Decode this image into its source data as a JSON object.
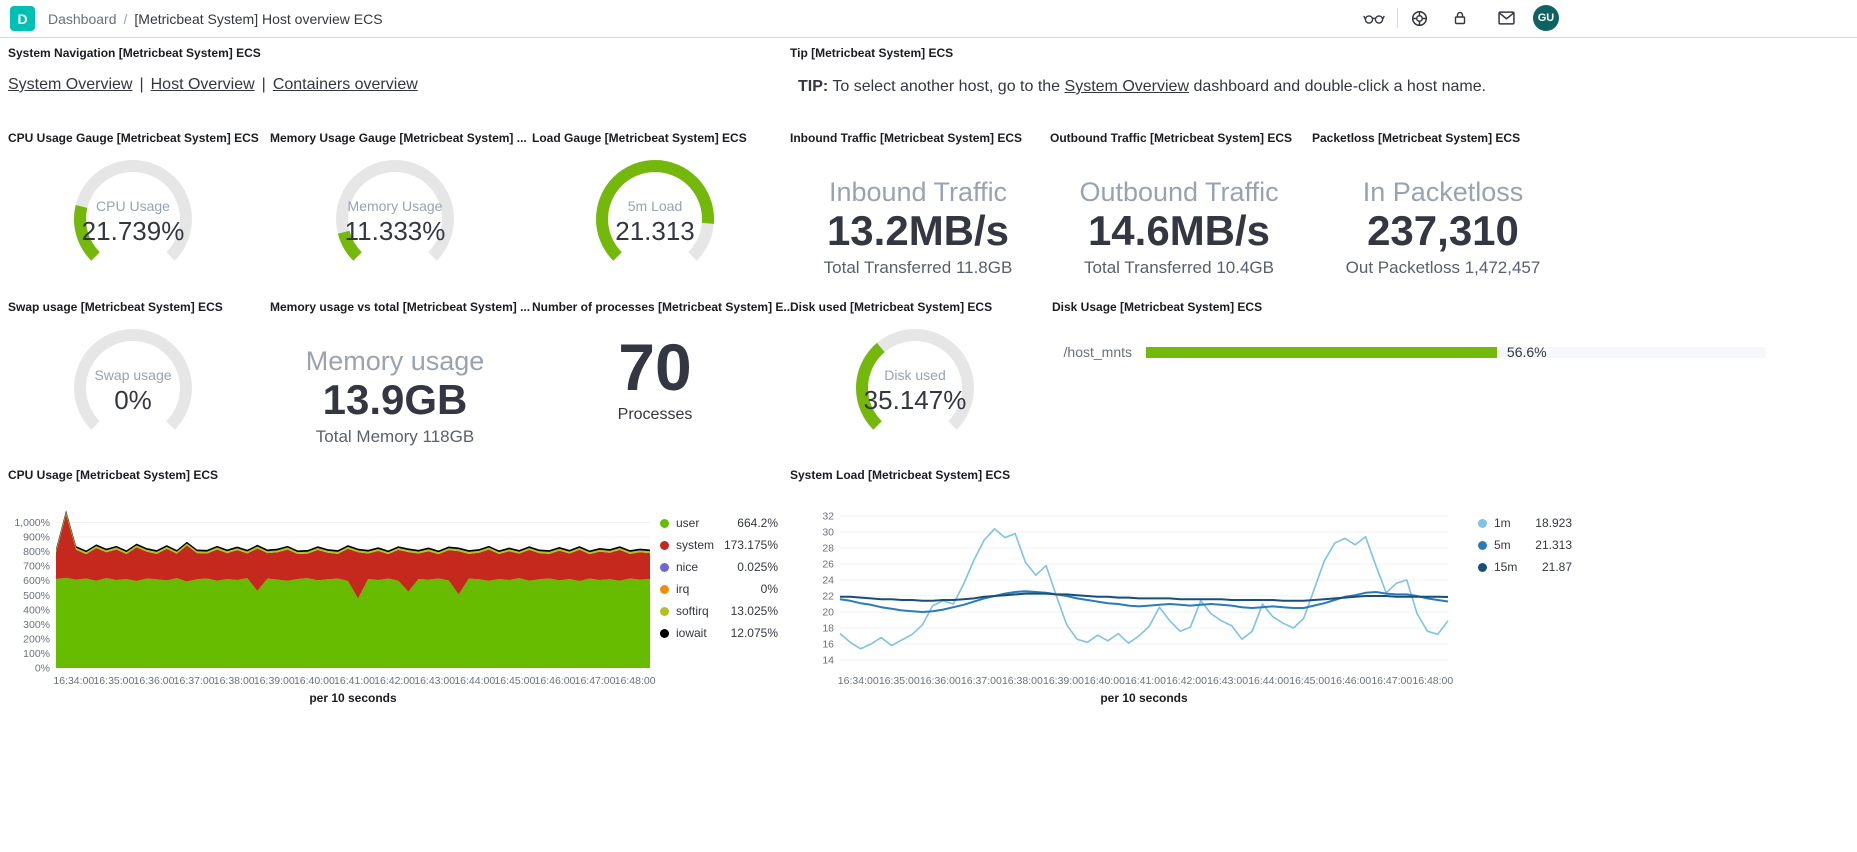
{
  "header": {
    "logo_letter": "D",
    "breadcrumb": {
      "section": "Dashboard",
      "separator": "/",
      "page": "[Metricbeat System] Host overview ECS"
    },
    "icons": [
      "glasses-view-only-icon",
      "help-ring-icon",
      "lock-icon",
      "mail-icon"
    ],
    "avatar_initials": "GU"
  },
  "colors": {
    "accent_teal": "#00bfb3",
    "avatar_bg": "#0e6362",
    "gauge_track": "#e6e6e6",
    "gauge_fill": "#74b80b",
    "disk_bar": "#74b80b"
  },
  "panels": {
    "system_navigation": {
      "title": "System Navigation [Metricbeat System] ECS",
      "links": [
        "System Overview",
        "Host Overview",
        "Containers overview"
      ],
      "separator": "|"
    },
    "tip": {
      "title": "Tip [Metricbeat System] ECS",
      "tip_label": "TIP:",
      "text_before": " To select another host, go to the ",
      "link": "System Overview",
      "text_after": " dashboard and double-click a host name."
    },
    "cpu_gauge": {
      "title": "CPU Usage Gauge [Metricbeat System] ECS",
      "label": "CPU Usage",
      "value": "21.739%",
      "fraction": 0.217
    },
    "memory_gauge": {
      "title": "Memory Usage Gauge [Metricbeat System] ...",
      "label": "Memory Usage",
      "value": "11.333%",
      "fraction": 0.113
    },
    "load_gauge": {
      "title": "Load Gauge [Metricbeat System] ECS",
      "label": "5m Load",
      "value": "21.313",
      "fraction": 0.85
    },
    "inbound": {
      "title": "Inbound Traffic [Metricbeat System] ECS",
      "label": "Inbound Traffic",
      "value": "13.2MB/s",
      "sub": "Total Transferred 11.8GB"
    },
    "outbound": {
      "title": "Outbound Traffic [Metricbeat System] ECS",
      "label": "Outbound Traffic",
      "value": "14.6MB/s",
      "sub": "Total Transferred 10.4GB"
    },
    "packetloss": {
      "title": "Packetloss [Metricbeat System] ECS",
      "label": "In Packetloss",
      "value": "237,310",
      "sub": "Out Packetloss 1,472,457"
    },
    "swap_gauge": {
      "title": "Swap usage [Metricbeat System] ECS",
      "label": "Swap usage",
      "value": "0%",
      "fraction": 0
    },
    "memory_vs_total": {
      "title": "Memory usage vs total [Metricbeat System] ...",
      "label": "Memory usage",
      "value": "13.9GB",
      "sub": "Total Memory 118GB"
    },
    "processes": {
      "title": "Number of processes [Metricbeat System] E...",
      "value": "70",
      "label": "Processes"
    },
    "disk_used_gauge": {
      "title": "Disk used [Metricbeat System] ECS",
      "label": "Disk used",
      "value": "35.147%",
      "fraction": 0.351
    },
    "disk_usage": {
      "title": "Disk Usage [Metricbeat System] ECS",
      "row_label": "/host_mnts",
      "percent": "56.6%",
      "fraction": 0.566
    },
    "cpu_chart": {
      "title": "CPU Usage [Metricbeat System] ECS"
    },
    "load_chart": {
      "title": "System Load [Metricbeat System] ECS"
    }
  },
  "chart_data": [
    {
      "type": "area",
      "stacked": true,
      "title": "CPU Usage [Metricbeat System] ECS",
      "xlabel": "per 10 seconds",
      "legend_position": "right",
      "grid": true,
      "ylim": [
        0,
        1100
      ],
      "yticks": [
        "0%",
        "100%",
        "200%",
        "300%",
        "400%",
        "500%",
        "600%",
        "700%",
        "800%",
        "900%",
        "1,000%"
      ],
      "xticks": [
        "16:34:00",
        "16:35:00",
        "16:36:00",
        "16:37:00",
        "16:38:00",
        "16:39:00",
        "16:40:00",
        "16:41:00",
        "16:42:00",
        "16:43:00",
        "16:44:00",
        "16:45:00",
        "16:46:00",
        "16:47:00",
        "16:48:00"
      ],
      "series": [
        {
          "name": "user",
          "color": "#68bc00",
          "legend_value": "664.2%",
          "values": [
            612,
            620,
            608,
            615,
            600,
            618,
            605,
            612,
            598,
            615,
            610,
            602,
            618,
            595,
            610,
            615,
            600,
            612,
            605,
            618,
            530,
            615,
            608,
            600,
            612,
            618,
            602,
            610,
            615,
            598,
            478,
            612,
            605,
            615,
            600,
            525,
            612,
            608,
            615,
            602,
            505,
            615,
            610,
            600,
            612,
            605,
            618,
            600,
            610,
            615,
            602,
            612,
            598,
            615,
            605,
            610,
            600,
            615,
            608,
            612
          ]
        },
        {
          "name": "system",
          "color": "#c5281c",
          "legend_value": "173.175%",
          "values": [
            182,
            438,
            205,
            168,
            225,
            178,
            210,
            172,
            232,
            185,
            175,
            218,
            168,
            248,
            180,
            172,
            215,
            178,
            205,
            170,
            292,
            175,
            188,
            215,
            172,
            168,
            210,
            182,
            170,
            222,
            318,
            175,
            200,
            168,
            212,
            272,
            175,
            195,
            168,
            208,
            298,
            170,
            182,
            215,
            172,
            198,
            168,
            212,
            180,
            170,
            205,
            175,
            215,
            168,
            195,
            182,
            212,
            170,
            188,
            178
          ]
        },
        {
          "name": "nice",
          "color": "#6e69d0",
          "legend_value": "0.025%",
          "values": 0.025
        },
        {
          "name": "irq",
          "color": "#ef8d0a",
          "legend_value": "0%",
          "values": 0
        },
        {
          "name": "softirq",
          "color": "#b1c321",
          "legend_value": "13.025%",
          "values": 13
        },
        {
          "name": "iowait",
          "color": "#000000",
          "legend_value": "12.075%",
          "values": 12
        }
      ]
    },
    {
      "type": "line",
      "title": "System Load [Metricbeat System] ECS",
      "xlabel": "per 10 seconds",
      "legend_position": "right",
      "grid": true,
      "ylim": [
        13,
        33
      ],
      "yticks": [
        "14",
        "16",
        "18",
        "20",
        "22",
        "24",
        "26",
        "28",
        "30",
        "32"
      ],
      "xticks": [
        "16:34:00",
        "16:35:00",
        "16:36:00",
        "16:37:00",
        "16:38:00",
        "16:39:00",
        "16:40:00",
        "16:41:00",
        "16:42:00",
        "16:43:00",
        "16:44:00",
        "16:45:00",
        "16:46:00",
        "16:47:00",
        "16:48:00"
      ],
      "series": [
        {
          "name": "1m",
          "color": "#7dc2e8",
          "legend_value": "18.923",
          "width": 1.6,
          "values": [
            17.3,
            16.2,
            15.4,
            16.0,
            16.8,
            15.8,
            16.5,
            17.2,
            18.4,
            20.8,
            21.4,
            21.0,
            23.5,
            26.5,
            29.0,
            30.4,
            29.3,
            29.8,
            26.2,
            24.6,
            25.8,
            22.0,
            18.4,
            16.6,
            16.2,
            17.1,
            16.4,
            17.3,
            16.1,
            17.0,
            18.2,
            20.6,
            18.9,
            17.6,
            18.1,
            21.4,
            19.8,
            18.9,
            18.3,
            16.6,
            17.6,
            21.0,
            19.4,
            18.6,
            18.0,
            19.2,
            22.8,
            26.4,
            28.6,
            29.2,
            28.4,
            29.4,
            25.8,
            22.4,
            23.6,
            24.0,
            19.8,
            17.6,
            17.2,
            18.9
          ]
        },
        {
          "name": "5m",
          "color": "#2b7bba",
          "legend_value": "21.313",
          "width": 2,
          "values": [
            21.6,
            21.4,
            21.1,
            20.9,
            20.6,
            20.4,
            20.2,
            20.1,
            20.0,
            20.1,
            20.3,
            20.6,
            20.9,
            21.3,
            21.7,
            22.0,
            22.3,
            22.5,
            22.6,
            22.5,
            22.4,
            22.2,
            22.0,
            21.7,
            21.5,
            21.3,
            21.1,
            21.0,
            20.8,
            20.7,
            20.8,
            20.9,
            21.0,
            20.9,
            20.8,
            20.9,
            21.0,
            20.9,
            20.8,
            20.6,
            20.5,
            20.6,
            20.7,
            20.6,
            20.5,
            20.5,
            20.8,
            21.1,
            21.5,
            21.9,
            22.1,
            22.4,
            22.5,
            22.3,
            22.2,
            22.2,
            22.0,
            21.7,
            21.5,
            21.31
          ]
        },
        {
          "name": "15m",
          "color": "#174f79",
          "legend_value": "21.87",
          "width": 2,
          "values": [
            21.9,
            21.9,
            21.8,
            21.7,
            21.6,
            21.6,
            21.5,
            21.5,
            21.4,
            21.4,
            21.5,
            21.5,
            21.6,
            21.7,
            21.9,
            22.0,
            22.1,
            22.2,
            22.3,
            22.3,
            22.3,
            22.2,
            22.2,
            22.1,
            22.0,
            21.9,
            21.9,
            21.8,
            21.8,
            21.7,
            21.7,
            21.7,
            21.7,
            21.6,
            21.6,
            21.6,
            21.6,
            21.6,
            21.5,
            21.5,
            21.5,
            21.5,
            21.5,
            21.4,
            21.4,
            21.4,
            21.5,
            21.6,
            21.7,
            21.8,
            21.9,
            22.0,
            22.0,
            22.0,
            21.9,
            21.9,
            21.9,
            21.9,
            21.9,
            21.87
          ]
        }
      ]
    }
  ]
}
